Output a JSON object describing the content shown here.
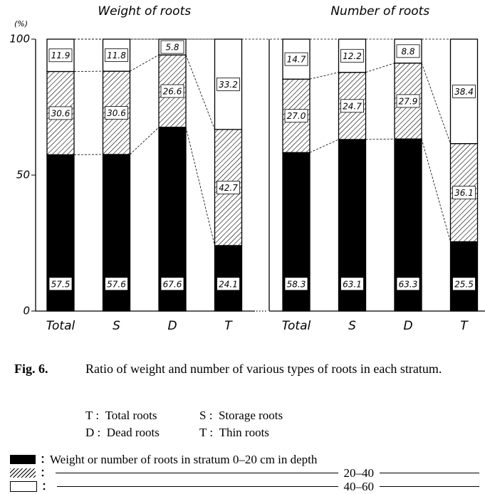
{
  "chart_data": [
    {
      "type": "bar",
      "title": "Weight of roots",
      "ylabel": "(%)",
      "categories": [
        "Total",
        "S",
        "D",
        "T"
      ],
      "ylim": [
        0,
        100
      ],
      "yticks": [
        0,
        50,
        100
      ],
      "series": [
        {
          "color": "#000000",
          "values": [
            57.5,
            57.6,
            67.6,
            24.1
          ]
        },
        {
          "color": "hatch",
          "values": [
            30.6,
            30.6,
            26.6,
            42.7
          ]
        },
        {
          "color": "#ffffff",
          "values": [
            11.9,
            11.8,
            5.8,
            33.2
          ]
        }
      ]
    },
    {
      "type": "bar",
      "title": "Number of roots",
      "categories": [
        "Total",
        "S",
        "D",
        "T"
      ],
      "ylim": [
        0,
        100
      ],
      "series": [
        {
          "color": "#000000",
          "values": [
            58.3,
            63.1,
            63.3,
            25.5
          ]
        },
        {
          "color": "hatch",
          "values": [
            27.0,
            24.7,
            27.9,
            36.1
          ],
          "value_labels": [
            "27.0",
            "24.7",
            "27.9",
            "36.1"
          ]
        },
        {
          "color": "#ffffff",
          "values": [
            14.7,
            12.2,
            8.8,
            38.4
          ]
        }
      ]
    }
  ],
  "caption": {
    "number": "Fig. 6.",
    "text": "Ratio of weight and number of various types of roots in each stratum."
  },
  "abbreviations": [
    {
      "key": "T :",
      "text": "Total roots"
    },
    {
      "key": "S :",
      "text": "Storage roots"
    },
    {
      "key": "D :",
      "text": "Dead roots"
    },
    {
      "key": "T :",
      "text": "Thin roots"
    }
  ],
  "legend": [
    "Weight or number of roots in stratum 0–20 cm in depth",
    "20–40",
    "40–60"
  ]
}
